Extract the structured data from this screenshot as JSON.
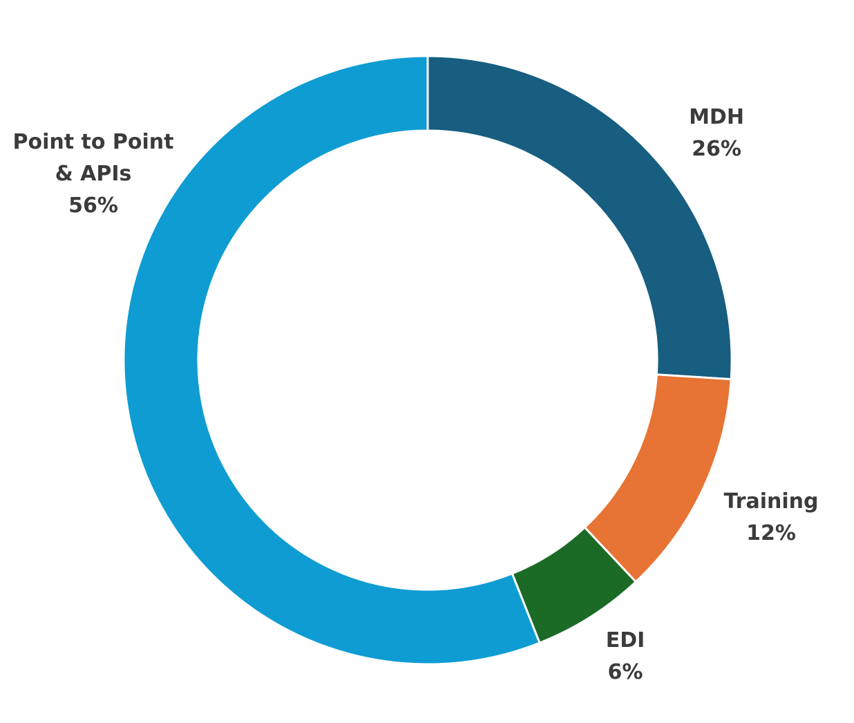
{
  "chart_data": {
    "type": "donut",
    "categories": [
      "MDH",
      "Training",
      "EDI",
      "Point to Point\n& APIs"
    ],
    "values": [
      26,
      12,
      6,
      56
    ],
    "value_labels": [
      "26%",
      "12%",
      "6%",
      "56%"
    ],
    "colors": [
      "#175e80",
      "#e77334",
      "#1b6b27",
      "#0f9cd3"
    ]
  }
}
